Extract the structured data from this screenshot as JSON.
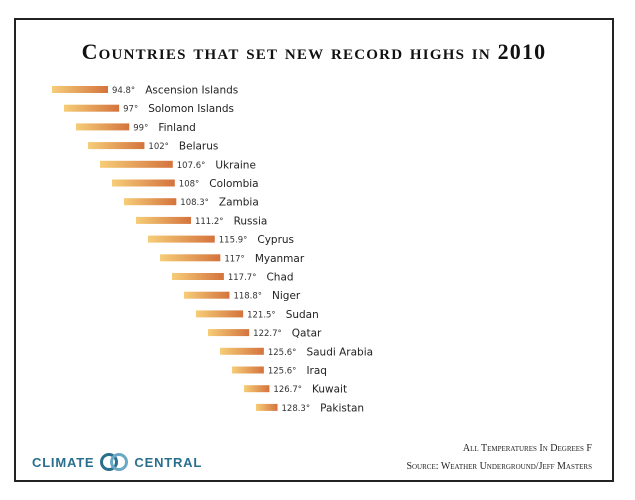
{
  "chart_data": {
    "type": "bar",
    "title": "Countries that set new record highs in 2010",
    "categories": [
      "Ascension Islands",
      "Solomon Islands",
      "Finland",
      "Belarus",
      "Ukraine",
      "Colombia",
      "Zambia",
      "Russia",
      "Cyprus",
      "Myanmar",
      "Chad",
      "Niger",
      "Sudan",
      "Qatar",
      "Saudi Arabia",
      "Iraq",
      "Kuwait",
      "Pakistan"
    ],
    "values": [
      94.8,
      97,
      99,
      102,
      107.6,
      108,
      108.3,
      111.2,
      115.9,
      117,
      117.7,
      118.8,
      121.5,
      122.7,
      125.6,
      125.6,
      126.7,
      128.3
    ],
    "value_labels": [
      "94.8°",
      "97°",
      "99°",
      "102°",
      "107.6°",
      "108°",
      "108.3°",
      "111.2°",
      "115.9°",
      "117°",
      "117.7°",
      "118.8°",
      "121.5°",
      "122.7°",
      "125.6°",
      "125.6°",
      "126.7°",
      "128.3°"
    ],
    "orientation": "horizontal",
    "grid": false,
    "colors": {
      "start": "#f6cd78",
      "end": "#d4733d"
    }
  },
  "notes": {
    "units": "All Temperatures In Degrees F",
    "source": "Source: Weather Underground/Jeff Masters"
  },
  "logo": {
    "left": "CLIMATE",
    "right": "CENTRAL",
    "color": "#2b6f8f"
  }
}
